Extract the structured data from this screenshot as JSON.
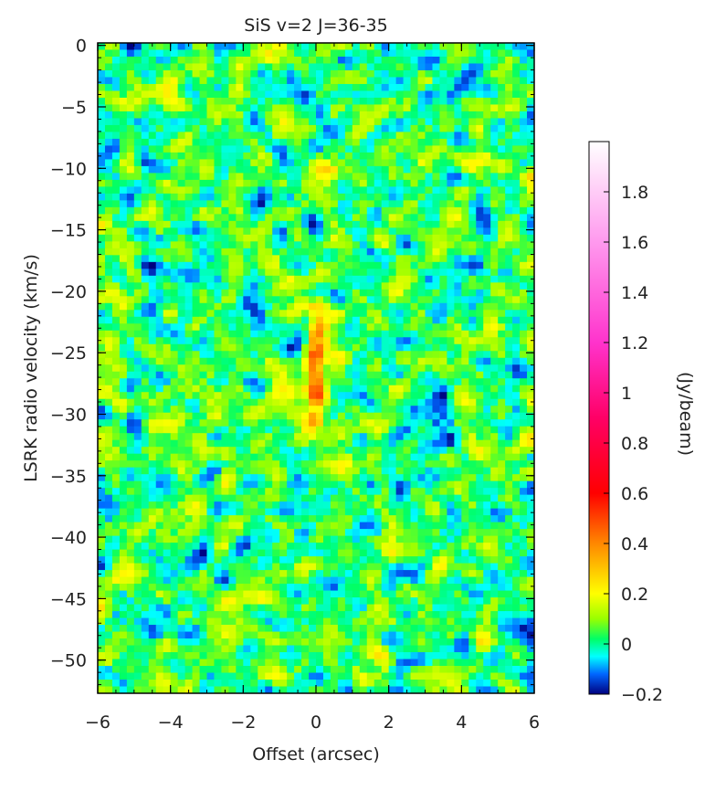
{
  "chart_data": {
    "type": "heatmap",
    "title": "SiS v=2 J=36-35",
    "xlabel": "Offset (arcsec)",
    "ylabel": "LSRK radio velocity  (km/s)",
    "colorbar_label": "(Jy/beam)",
    "xlim": [
      -6,
      6
    ],
    "ylim": [
      -52.7,
      0.2
    ],
    "xticks": [
      -6,
      -4,
      -2,
      0,
      2,
      4,
      6
    ],
    "xtick_labels": [
      "−6",
      "−4",
      "−2",
      "0",
      "2",
      "4",
      "6"
    ],
    "yticks": [
      0,
      -5,
      -10,
      -15,
      -20,
      -25,
      -30,
      -35,
      -40,
      -45,
      -50
    ],
    "ytick_labels": [
      "0",
      "−5",
      "−10",
      "−15",
      "−20",
      "−25",
      "−30",
      "−35",
      "−40",
      "−45",
      "−50"
    ],
    "colorbar_range": [
      -0.2,
      2.0
    ],
    "colorbar_ticks": [
      -0.2,
      0,
      0.2,
      0.4,
      0.6,
      0.8,
      1,
      1.2,
      1.4,
      1.6,
      1.8
    ],
    "colorbar_tick_labels": [
      "−0.2",
      "0",
      "0.2",
      "0.4",
      "0.6",
      "0.8",
      "1",
      "1.2",
      "1.4",
      "1.6",
      "1.8"
    ],
    "colormap_stops": [
      {
        "v": -0.2,
        "color": "#00007f"
      },
      {
        "v": -0.12,
        "color": "#0066ff"
      },
      {
        "v": -0.05,
        "color": "#00ffff"
      },
      {
        "v": 0.02,
        "color": "#00ff66"
      },
      {
        "v": 0.1,
        "color": "#99ff00"
      },
      {
        "v": 0.2,
        "color": "#ffff00"
      },
      {
        "v": 0.4,
        "color": "#ff8800"
      },
      {
        "v": 0.6,
        "color": "#ff0000"
      },
      {
        "v": 0.9,
        "color": "#ff0066"
      },
      {
        "v": 1.2,
        "color": "#ff33cc"
      },
      {
        "v": 1.6,
        "color": "#ff99ee"
      },
      {
        "v": 2.0,
        "color": "#ffffff"
      }
    ],
    "features": [
      {
        "label": "emission ridge",
        "x_offset": 0.0,
        "velocity_range": [
          -32,
          -21
        ],
        "peak_velocity": -26.5,
        "peak_value": 0.45
      },
      {
        "label": "noise",
        "typical_range": [
          -0.15,
          0.2
        ]
      }
    ]
  }
}
